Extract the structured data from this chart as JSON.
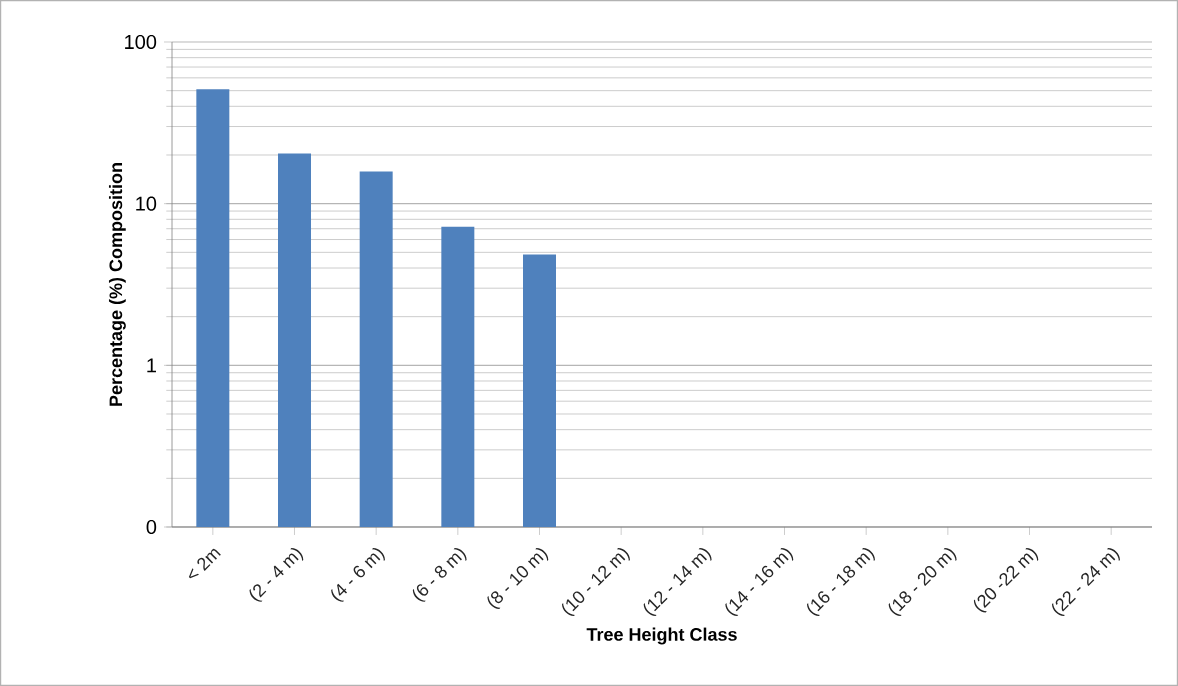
{
  "chart_data": {
    "type": "bar",
    "xlabel": "Tree Height Class",
    "ylabel": "Percentage (%) Composition",
    "categories": [
      "< 2m",
      "(2 - 4 m)",
      "(4 - 6 m)",
      "(6 - 8 m)",
      "(8 - 10 m)",
      "(10 - 12 m)",
      "(12 - 14 m)",
      "(14 - 16 m)",
      "(16 - 18 m)",
      "(18 - 20 m)",
      "(20 -22 m)",
      "(22 - 24 m)"
    ],
    "values": [
      51,
      20.4,
      15.8,
      7.2,
      4.85,
      null,
      null,
      null,
      null,
      null,
      null,
      null
    ],
    "color": "#4f81bd",
    "log": "y",
    "ylim": [
      0.1,
      100
    ],
    "yticks": [
      {
        "value": 0.1,
        "label": "0"
      },
      1,
      10,
      100
    ],
    "grid": "y"
  }
}
